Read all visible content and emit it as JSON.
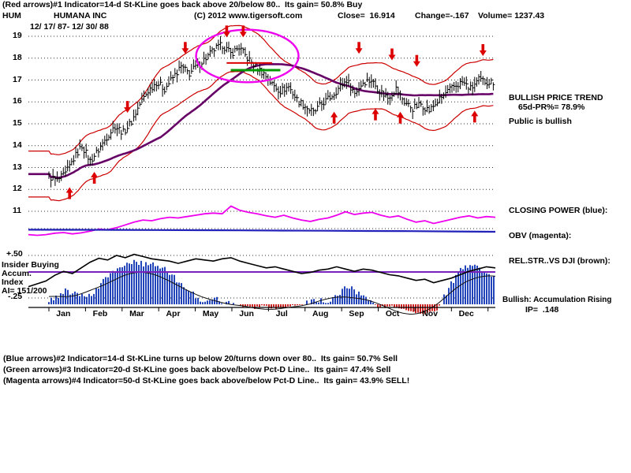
{
  "header": {
    "line1": "(Red arrows)#1 Indicator=14-d St-KLine goes back above 20/below 80..  Its gain= 50.8% Buy",
    "symbol": "HUM",
    "company": "HUMANA INC",
    "copyright": "(C) 2012 www.tigersoft.com",
    "close": "Close=  16.914",
    "change": "Change=-.167",
    "volume": "Volume= 1237.43",
    "date_range": "12/ 17/ 87- 12/ 30/ 88"
  },
  "right_panel": {
    "trend_title": "BULLISH PRICE TREND",
    "trend_value": "65d-PR%= 78.9%",
    "public": "Public is bullish",
    "closing_power": "CLOSING POWER (blue):",
    "obv": "OBV (magenta):",
    "rel_str": "REL.STR..VS DJI (brown):",
    "accum_note": "Bullish: Accumulation Rising",
    "ip": "IP=  .148"
  },
  "left_panel": {
    "insider": "Insider Buying",
    "accum": "Accum.",
    "index": "Index",
    "ai": "AI= 151/200"
  },
  "footer": {
    "line1": "(Blue arrows)#2 Indicator=14-d St-KLine turns up below 20/turns down over 80..  Its gain= 50.7% Sell",
    "line2": "(Green arrows)#3 Indicator=20-d St-KLine goes back above/below Pct-D Line..  Its gain= 47.4% Sell",
    "line3": "(Magenta arrows)#4 Indicator=50-d St-KLine goes back above/below Pct-D Line..  Its gain= 43.9% SELL!"
  },
  "chart_data": {
    "type": "line",
    "variant": "daily OHLC bars with trading bands, moving average and lower indicators",
    "title": "HUMANA INC (HUM) 12/17/87 - 12/30/88",
    "ticker": "HUM",
    "close": 16.914,
    "change": -0.167,
    "volume": 1237.43,
    "pr65d_pct": 78.9,
    "ai_index": "151/200",
    "ip_value": 0.148,
    "months": [
      "Jan",
      "Feb",
      "Mar",
      "Apr",
      "May",
      "Jun",
      "Jul",
      "Aug",
      "Sep",
      "Oct",
      "Nov",
      "Dec"
    ],
    "price_ticks": [
      19,
      18,
      17,
      16,
      15,
      14,
      13,
      12,
      11
    ],
    "lower_ticks": [
      "+.50",
      "-.25"
    ],
    "ylim": [
      11,
      19
    ],
    "band_offset": 1.05,
    "weekly_close": [
      12.6,
      12.4,
      12.7,
      13.4,
      14.0,
      13.3,
      13.8,
      14.4,
      14.9,
      14.6,
      15.1,
      15.9,
      16.5,
      16.9,
      16.6,
      17.1,
      17.6,
      17.3,
      17.7,
      18.0,
      18.4,
      18.6,
      18.2,
      18.5,
      18.0,
      17.6,
      17.3,
      16.8,
      16.5,
      16.7,
      16.1,
      15.8,
      15.5,
      15.9,
      16.2,
      16.6,
      17.0,
      16.4,
      16.9,
      17.0,
      16.5,
      16.2,
      16.6,
      16.0,
      15.7,
      15.9,
      15.6,
      16.0,
      16.4,
      16.7,
      16.9,
      16.6,
      17.0,
      16.914
    ],
    "obv": [
      0.1,
      0.08,
      0.1,
      0.14,
      0.16,
      0.12,
      0.15,
      0.2,
      0.26,
      0.24,
      0.3,
      0.38,
      0.46,
      0.52,
      0.5,
      0.56,
      0.6,
      0.58,
      0.62,
      0.66,
      0.7,
      0.72,
      0.7,
      0.92,
      0.8,
      0.74,
      0.7,
      0.64,
      0.6,
      0.66,
      0.58,
      0.52,
      0.48,
      0.54,
      0.58,
      0.66,
      0.76,
      0.68,
      0.72,
      0.74,
      0.66,
      0.6,
      0.64,
      0.54,
      0.46,
      0.5,
      0.42,
      0.48,
      0.54,
      0.6,
      0.64,
      0.58,
      0.62,
      0.6
    ],
    "closing_power": [
      0.55,
      0.54,
      0.53,
      0.52,
      0.5,
      0.48,
      0.46,
      0.44,
      0.42,
      0.4,
      0.37,
      0.33
    ],
    "rel_str": [
      -0.05,
      0.0,
      0.05,
      0.15,
      0.22,
      0.18,
      0.28,
      0.38,
      0.45,
      0.42,
      0.5,
      0.46,
      0.52,
      0.48,
      0.44,
      0.42,
      0.4,
      0.36,
      0.4,
      0.44,
      0.42,
      0.4,
      0.44,
      0.46,
      0.4,
      0.36,
      0.32,
      0.28,
      0.3,
      0.26,
      0.22,
      0.18,
      0.2,
      0.24,
      0.26,
      0.3,
      0.26,
      0.22,
      0.26,
      0.24,
      0.2,
      0.16,
      0.14,
      0.1,
      0.06,
      0.08,
      0.02,
      0.06,
      0.1,
      0.16,
      0.22,
      0.26,
      0.3,
      0.28
    ],
    "accum": [
      0.1,
      0.18,
      0.3,
      0.28,
      0.22,
      0.18,
      0.4,
      0.65,
      0.85,
      0.9,
      1.0,
      0.95,
      0.92,
      0.88,
      0.8,
      0.6,
      0.4,
      0.25,
      0.12,
      0.08,
      0.1,
      0.06,
      0.04,
      -0.08,
      -0.2,
      -0.12,
      -0.1,
      -0.22,
      -0.18,
      -0.08,
      -0.05,
      0.06,
      0.1,
      0.06,
      0.15,
      0.4,
      0.35,
      0.25,
      0.1,
      -0.08,
      -0.14,
      -0.1,
      -0.18,
      -0.35,
      -0.5,
      -0.4,
      -0.28,
      0.2,
      0.55,
      0.8,
      0.95,
      0.85,
      0.75,
      0.6
    ],
    "arrows_red": [
      {
        "week": 2,
        "dir": "up",
        "price": 12.1
      },
      {
        "week": 5,
        "dir": "up",
        "price": 12.8
      },
      {
        "week": 9,
        "dir": "down",
        "price": 15.5
      },
      {
        "week": 16,
        "dir": "down",
        "price": 18.2
      },
      {
        "week": 21,
        "dir": "down",
        "price": 18.95
      },
      {
        "week": 23,
        "dir": "down",
        "price": 18.95
      },
      {
        "week": 34,
        "dir": "up",
        "price": 15.55
      },
      {
        "week": 37,
        "dir": "down",
        "price": 18.2
      },
      {
        "week": 39,
        "dir": "up",
        "price": 15.7
      },
      {
        "week": 41,
        "dir": "down",
        "price": 17.9
      },
      {
        "week": 42,
        "dir": "up",
        "price": 15.55
      },
      {
        "week": 44,
        "dir": "down",
        "price": 17.6
      },
      {
        "week": 51,
        "dir": "up",
        "price": 15.6
      },
      {
        "week": 52,
        "dir": "down",
        "price": 18.1
      }
    ],
    "annotations": {
      "ellipse": {
        "week": 23.5,
        "price": 18.1,
        "rx_weeks": 6.2,
        "ry_price": 1.2,
        "color": "#ee00ee"
      },
      "green_line": {
        "w0": 21.5,
        "w1": 27.5,
        "price": 17.45
      },
      "red_line": {
        "w0": 21.0,
        "w1": 26.5,
        "price": 17.78
      }
    },
    "colors": {
      "band": "#cc0000",
      "ma": "#660066",
      "obv": "#ee00ee",
      "closing_power": "#2222bb",
      "rel_str": "#000000",
      "accum_pos": "#2244bb",
      "accum_neg": "#cc2222",
      "reference": "#7722bb",
      "arrow": "#dd0000"
    }
  }
}
